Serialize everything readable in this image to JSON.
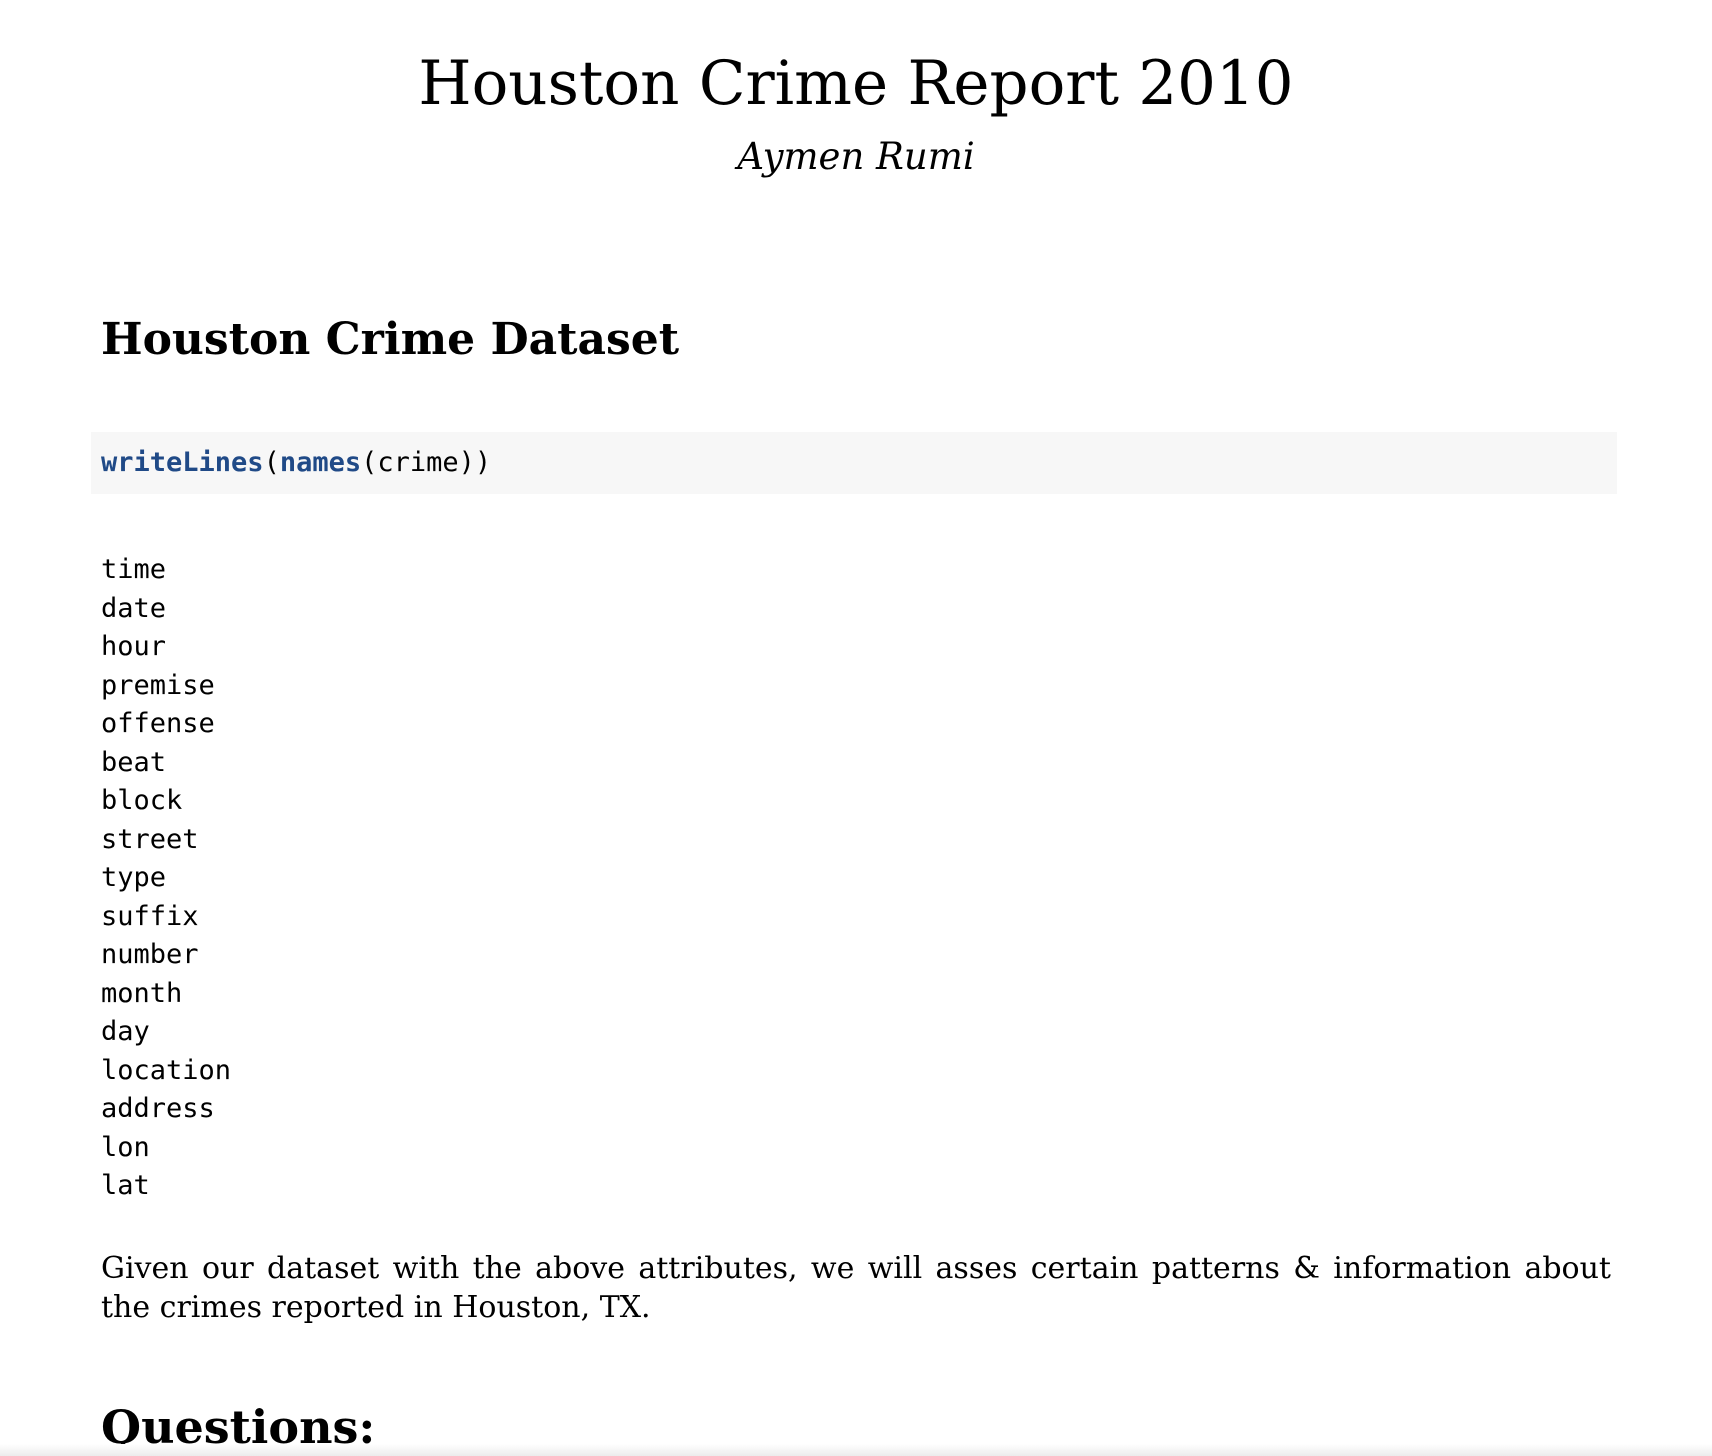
{
  "document": {
    "title": "Houston Crime Report 2010",
    "author": "Aymen Rumi"
  },
  "section1": {
    "heading": "Houston Crime Dataset"
  },
  "code": {
    "fn_outer": "writeLines",
    "paren_open": "(",
    "fn_inner": "names",
    "arg": "(crime))"
  },
  "output": {
    "lines": [
      "time",
      "date",
      "hour",
      "premise",
      "offense",
      "beat",
      "block",
      "street",
      "type",
      "suffix",
      "number",
      "month",
      "day",
      "location",
      "address",
      "lon",
      "lat"
    ]
  },
  "paragraph": {
    "text": "Given our dataset with the above attributes, we will asses certain patterns & information about the crimes reported in Houston, TX."
  },
  "section2": {
    "heading": "Questions:"
  },
  "colors": {
    "code_background": "#f7f7f7",
    "code_function": "#204a87",
    "text": "#000000"
  }
}
